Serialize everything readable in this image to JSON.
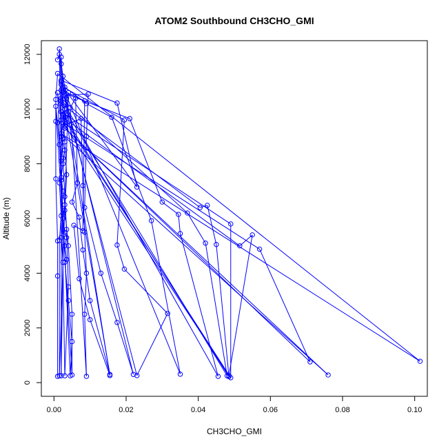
{
  "chart_data": {
    "type": "line",
    "title": "ATOM2 Southbound CH3CHO_GMI",
    "xlabel": "CH3CHO_GMI",
    "ylabel": "Altitude (m)",
    "xlim": [
      -0.0035,
      0.1035
    ],
    "ylim": [
      -500,
      12500
    ],
    "xticks": [
      0.0,
      0.02,
      0.04,
      0.06,
      0.08,
      0.1
    ],
    "xtick_labels": [
      "0.00",
      "0.02",
      "0.04",
      "0.06",
      "0.08",
      "0.10"
    ],
    "yticks": [
      0,
      2000,
      4000,
      6000,
      8000,
      10000,
      12000
    ],
    "ytick_labels": [
      "0",
      "2000",
      "4000",
      "6000",
      "8000",
      "10000",
      "12000"
    ],
    "grid": false,
    "legend": "none",
    "series_color": "#0000ff",
    "series": [
      {
        "points": [
          [
            0.001,
            11800
          ],
          [
            0.0015,
            12000
          ],
          [
            0.002,
            11650
          ],
          [
            0.0025,
            11200
          ],
          [
            0.003,
            10800
          ],
          [
            0.0035,
            10400
          ],
          [
            0.003,
            10000
          ],
          [
            0.0025,
            9500
          ],
          [
            0.002,
            9000
          ],
          [
            0.003,
            8500
          ],
          [
            0.0025,
            8000
          ],
          [
            0.002,
            7500
          ],
          [
            0.0025,
            7000
          ],
          [
            0.003,
            6500
          ],
          [
            0.0025,
            6000
          ],
          [
            0.003,
            5500
          ],
          [
            0.0035,
            5300
          ],
          [
            0.003,
            5000
          ],
          [
            0.0035,
            4500
          ],
          [
            0.003,
            4400
          ],
          [
            0.004,
            3000
          ],
          [
            0.005,
            1500
          ],
          [
            0.0045,
            250
          ],
          [
            0.001,
            10600
          ],
          [
            0.002,
            9600
          ],
          [
            0.0025,
            8200
          ],
          [
            0.003,
            6800
          ],
          [
            0.0035,
            5600
          ],
          [
            0.004,
            3500
          ],
          [
            0.003,
            250
          ],
          [
            0.0015,
            12200
          ],
          [
            0.002,
            11000
          ],
          [
            0.0025,
            9800
          ],
          [
            0.003,
            8800
          ],
          [
            0.0035,
            7600
          ],
          [
            0.003,
            6300
          ],
          [
            0.004,
            5000
          ],
          [
            0.005,
            2500
          ],
          [
            0.005,
            280
          ],
          [
            0.0005,
            10100
          ],
          [
            0.001,
            9500
          ],
          [
            0.0015,
            8700
          ],
          [
            0.002,
            7400
          ],
          [
            0.0025,
            6200
          ],
          [
            0.002,
            5300
          ],
          [
            0.0025,
            4400
          ],
          [
            0.002,
            250
          ],
          [
            0.002,
            11900
          ],
          [
            0.0025,
            10700
          ],
          [
            0.002,
            10300
          ],
          [
            0.003,
            9700
          ],
          [
            0.0025,
            8900
          ],
          [
            0.002,
            8100
          ],
          [
            0.0015,
            7300
          ],
          [
            0.002,
            6100
          ],
          [
            0.0015,
            5200
          ],
          [
            0.0015,
            250
          ],
          [
            0.004,
            10600
          ],
          [
            0.003,
            9400
          ],
          [
            0.0075,
            9650
          ],
          [
            0.008,
            7200
          ],
          [
            0.0085,
            5500
          ],
          [
            0.009,
            4000
          ],
          [
            0.0085,
            2500
          ],
          [
            0.009,
            230
          ],
          [
            0.0045,
            10050
          ],
          [
            0.006,
            10400
          ],
          [
            0.0065,
            7300
          ],
          [
            0.005,
            6600
          ],
          [
            0.007,
            6050
          ],
          [
            0.008,
            4850
          ],
          [
            0.01,
            3000
          ],
          [
            0.0155,
            300
          ],
          [
            0.002,
            10700
          ],
          [
            0.0085,
            10300
          ],
          [
            0.008,
            5550
          ],
          [
            0.0055,
            5750
          ],
          [
            0.007,
            3800
          ],
          [
            0.01,
            2300
          ],
          [
            0.0155,
            260
          ],
          [
            0.003,
            10500
          ],
          [
            0.0095,
            10550
          ],
          [
            0.009,
            9000
          ],
          [
            0.0085,
            6400
          ],
          [
            0.013,
            4000
          ],
          [
            0.0175,
            2200
          ],
          [
            0.022,
            300
          ],
          [
            0.002,
            11050
          ],
          [
            0.0175,
            10220
          ],
          [
            0.023,
            7150
          ],
          [
            0.002,
            10900
          ],
          [
            0.009,
            10200
          ],
          [
            0.016,
            9700
          ],
          [
            0.027,
            5920
          ],
          [
            0.035,
            310
          ],
          [
            0.0025,
            10800
          ],
          [
            0.0195,
            9600
          ],
          [
            0.0175,
            5030
          ],
          [
            0.0195,
            4150
          ],
          [
            0.0315,
            2530
          ],
          [
            0.023,
            260
          ],
          [
            0.0025,
            10600
          ],
          [
            0.021,
            9650
          ],
          [
            0.03,
            6600
          ],
          [
            0.0345,
            6150
          ],
          [
            0.035,
            5450
          ],
          [
            0.0455,
            230
          ],
          [
            0.002,
            10400
          ],
          [
            0.037,
            6200
          ],
          [
            0.042,
            5100
          ],
          [
            0.048,
            250
          ],
          [
            0.002,
            10200
          ],
          [
            0.0405,
            6400
          ],
          [
            0.0425,
            6480
          ],
          [
            0.045,
            5050
          ],
          [
            0.0485,
            220
          ],
          [
            0.002,
            9900
          ],
          [
            0.049,
            5800
          ],
          [
            0.049,
            180
          ],
          [
            0.0025,
            9700
          ],
          [
            0.0515,
            5000
          ],
          [
            0.055,
            5400
          ],
          [
            0.0485,
            260
          ],
          [
            0.0025,
            9500
          ],
          [
            0.057,
            4880
          ],
          [
            0.071,
            760
          ],
          [
            0.003,
            9300
          ],
          [
            0.076,
            280
          ],
          [
            0.002,
            9100
          ],
          [
            0.1015,
            780
          ],
          [
            0.001,
            11300
          ],
          [
            0.0005,
            10350
          ],
          [
            0.0005,
            9550
          ],
          [
            0.0005,
            7450
          ],
          [
            0.001,
            5180
          ],
          [
            0.001,
            3900
          ],
          [
            0.001,
            230
          ]
        ]
      }
    ]
  }
}
